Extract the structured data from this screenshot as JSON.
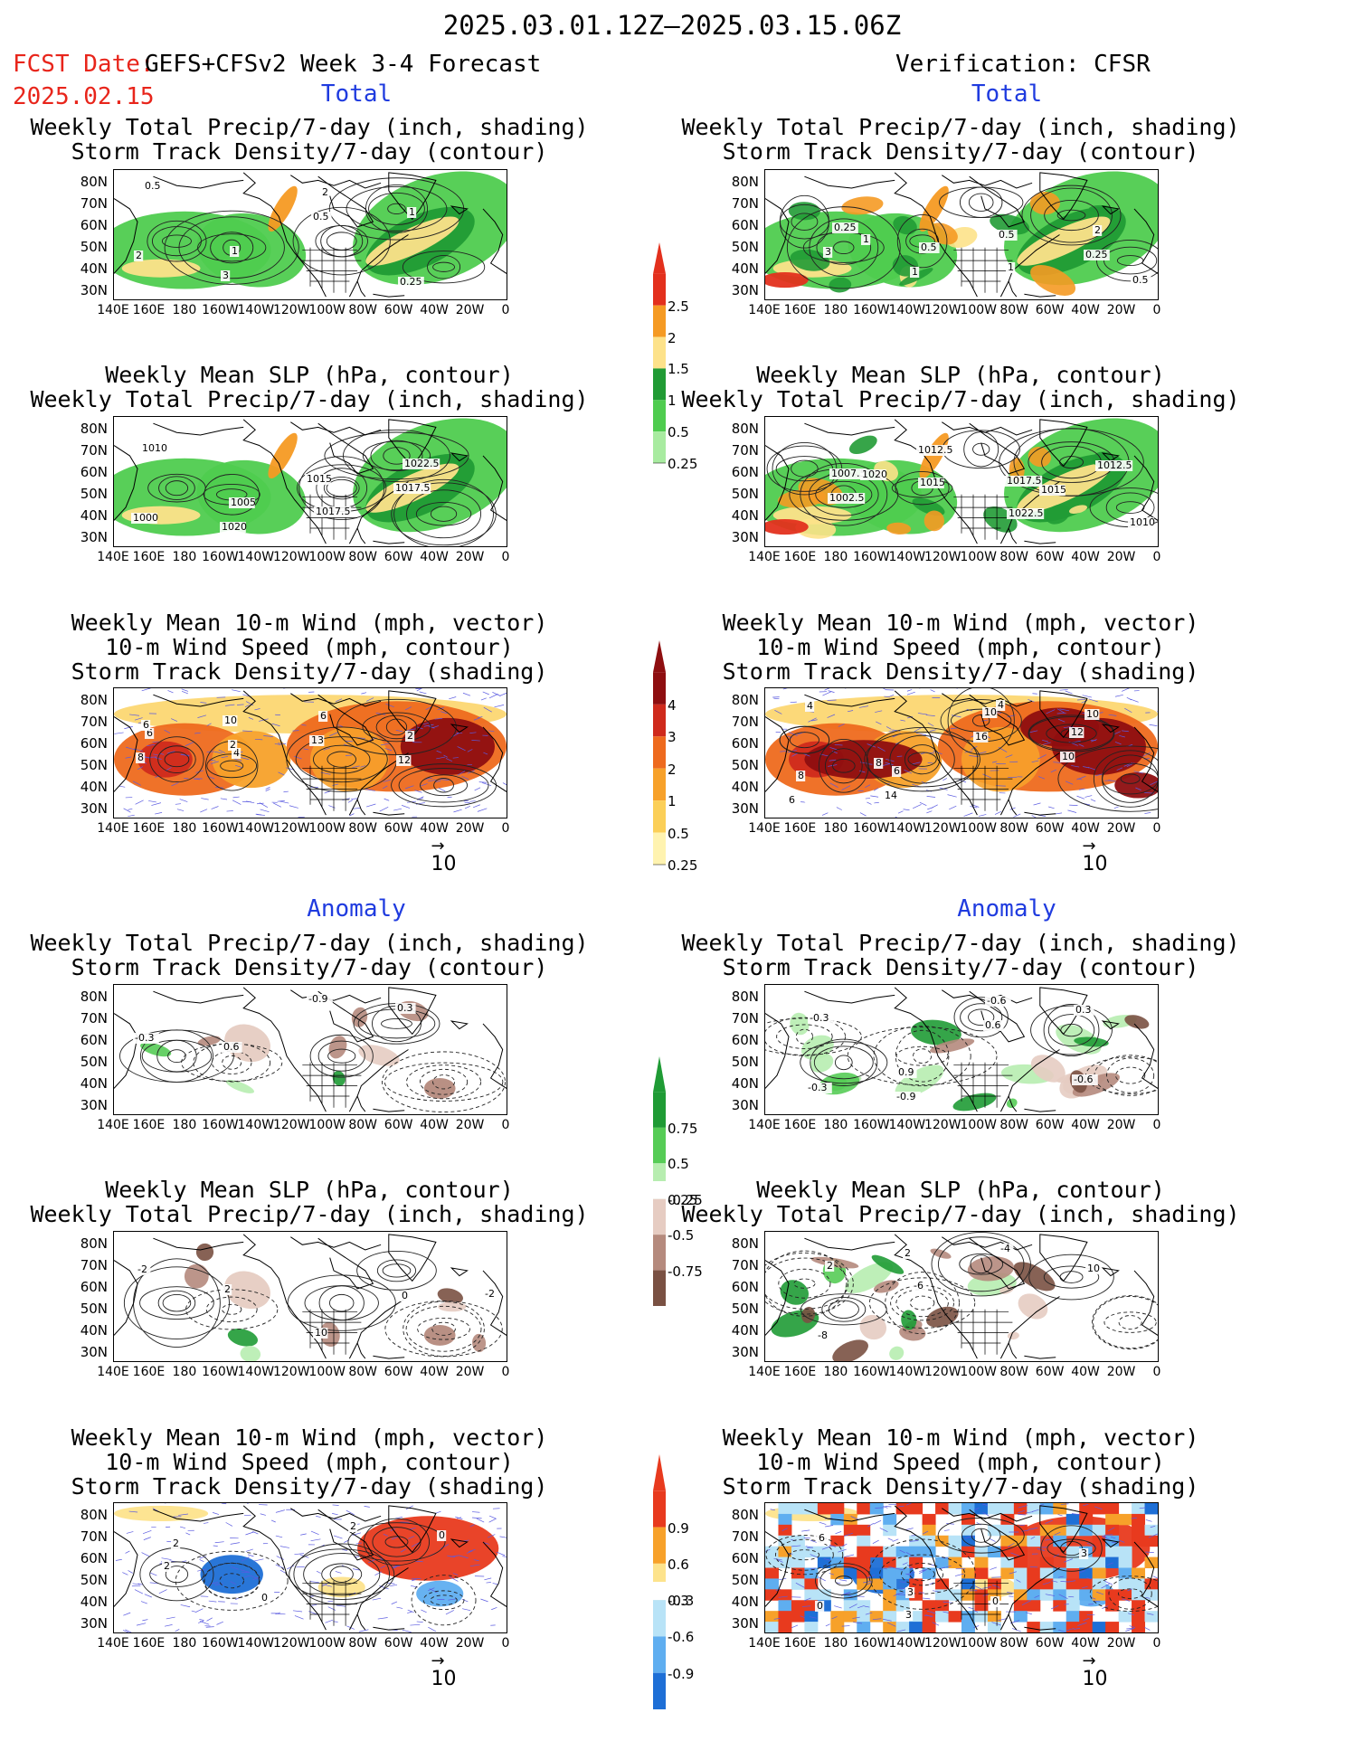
{
  "header": {
    "main_title": "2025.03.01.12Z–2025.03.15.06Z",
    "fcst_date_label": "FCST Date:",
    "fcst_date": "2025.02.15",
    "model_title": "GEFS+CFSv2 Week 3-4 Forecast",
    "verification": "Verification: CFSR"
  },
  "sections": {
    "total": "Total",
    "anomaly": "Anomaly"
  },
  "panel_titles": {
    "precip": [
      "Weekly Total Precip/7-day (inch, shading)",
      "Storm Track Density/7-day (contour)"
    ],
    "slp": [
      "Weekly Mean SLP (hPa, contour)",
      "Weekly Total Precip/7-day (inch, shading)"
    ],
    "wind": [
      "Weekly Mean 10-m Wind (mph, vector)",
      "10-m Wind Speed (mph, contour)",
      "Storm Track Density/7-day (shading)"
    ]
  },
  "axes": {
    "lat_labels": [
      "80N",
      "70N",
      "60N",
      "50N",
      "40N",
      "30N"
    ],
    "lon_labels": [
      "140E",
      "160E",
      "180",
      "160W",
      "140W",
      "120W",
      "100W",
      "80W",
      "60W",
      "40W",
      "20W",
      "0"
    ]
  },
  "colorbars": {
    "precip_total": {
      "labels": [
        "2.5",
        "2",
        "1.5",
        "1",
        "0.5",
        "0.25"
      ],
      "colors": [
        "#e3301d",
        "#f59a23",
        "#fde28a",
        "#219b35",
        "#4fcc4f",
        "#a8eba0"
      ]
    },
    "std_total": {
      "labels": [
        "4",
        "3",
        "2",
        "1",
        "0.5",
        "0.25"
      ],
      "colors": [
        "#8e0e10",
        "#cf2a1c",
        "#ee6a1e",
        "#f7a12a",
        "#fbcf58",
        "#fff3b0"
      ]
    },
    "precip_anom": {
      "labels": [
        "0.75",
        "0.5",
        "0.25",
        "-0.25",
        "-0.5",
        "-0.75"
      ],
      "colors": [
        "#1f9b35",
        "#56cc56",
        "#b7edb0",
        "#e6ccc2",
        "#b58a7d",
        "#7a5143"
      ]
    },
    "std_anom": {
      "labels": [
        "0.9",
        "0.6",
        "0.3",
        "-0.3",
        "-0.6",
        "-0.9"
      ],
      "colors": [
        "#e83a1e",
        "#f7a12a",
        "#fde38c",
        "#b8e3f7",
        "#5faef0",
        "#1e6fd6"
      ]
    }
  },
  "vector_ref": "10",
  "contour_labels": {
    "p1l": [
      "0.5",
      "1",
      "2",
      "1",
      "2",
      "3",
      "0.5",
      "0.25"
    ],
    "p1r": [
      "0.25",
      "0.5",
      "1",
      "2",
      "3",
      "1",
      "0.5",
      "0.25",
      "0.5",
      "1"
    ],
    "p2l": [
      "1010",
      "1005",
      "1017.5",
      "1022.5",
      "1000",
      "1020",
      "1015",
      "1017.5"
    ],
    "p2r": [
      "1007.5",
      "1015",
      "1022.5",
      "1012.5",
      "1002.5",
      "1012.5",
      "1017.5",
      "1015",
      "1010",
      "1020"
    ],
    "p3l": [
      "6",
      "4",
      "6",
      "2",
      "8",
      "10",
      "13",
      "12",
      "6",
      "2"
    ],
    "p3r": [
      "4",
      "6",
      "10",
      "12",
      "8",
      "14",
      "16",
      "10",
      "6",
      "8",
      "4",
      "10"
    ],
    "a1l": [
      "-0.3",
      "0.6",
      "-0.9",
      "0.3"
    ],
    "a1r": [
      "-0.3",
      "0.9",
      "-0.6",
      "0.3",
      "-0.3",
      "-0.9",
      "0.6",
      "-0.6"
    ],
    "a2l": [
      "-2",
      "2",
      "10",
      "0",
      "-2"
    ],
    "a2r": [
      "2",
      "-6",
      "-4",
      "10",
      "-8",
      "2"
    ],
    "a3l": [
      "2",
      "0",
      "2",
      "0",
      "2"
    ],
    "a3r": [
      "6",
      "3",
      "0",
      "3",
      "0",
      "3"
    ]
  }
}
